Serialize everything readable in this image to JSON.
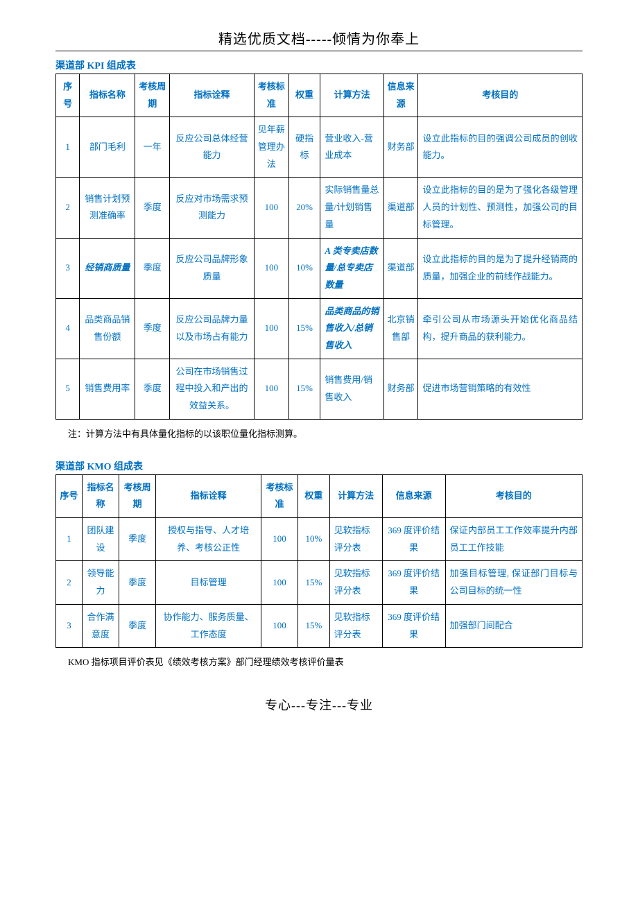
{
  "header": "精选优质文档-----倾情为你奉上",
  "footer": "专心---专注---专业",
  "kpi": {
    "title": "渠道部 KPI 组成表",
    "columns": [
      "序号",
      "指标名称",
      "考核周期",
      "指标诠释",
      "考核标准",
      "权重",
      "计算方法",
      "信息来源",
      "考核目的"
    ],
    "rows": [
      {
        "seq": "1",
        "name": "部门毛利",
        "period": "一年",
        "interp": "反应公司总体经营能力",
        "std": "见年薪管理办法",
        "weight": "硬指标",
        "method": "营业收入-营业成本",
        "source": "财务部",
        "purpose": "设立此指标的目的强调公司成员的创收能力。"
      },
      {
        "seq": "2",
        "name": "销售计划预测准确率",
        "period": "季度",
        "interp": "反应对市场需求预测能力",
        "std": "100",
        "weight": "20%",
        "method": "实际销售量总量/计划销售量",
        "source": "渠道部",
        "purpose": "设立此指标的目的是为了强化各级管理人员的计划性、预测性，加强公司的目标管理。"
      },
      {
        "seq": "3",
        "name": "经销商质量",
        "nameItalic": true,
        "period": "季度",
        "interp": "反应公司品牌形象质量",
        "std": "100",
        "weight": "10%",
        "method": "A 类专卖店数量/总专卖店数量",
        "methodItalic": true,
        "source": "渠道部",
        "purpose": "设立此指标的目的是为了提升经销商的质量，加强企业的前线作战能力。"
      },
      {
        "seq": "4",
        "name": "品类商品销售份额",
        "period": "季度",
        "interp": "反应公司品牌力量以及市场占有能力",
        "std": "100",
        "weight": "15%",
        "method": "品类商品的销售收入/总销售收入",
        "methodItalic": true,
        "source": "北京销售部",
        "purpose": "牵引公司从市场源头开始优化商品结构，提升商品的获利能力。"
      },
      {
        "seq": "5",
        "name": "销售费用率",
        "period": "季度",
        "interp": "公司在市场销售过程中投入和产出的效益关系。",
        "std": "100",
        "weight": "15%",
        "method": "销售费用/销售收入",
        "source": "财务部",
        "purpose": "促进市场营销策略的有效性"
      }
    ],
    "note": "注：计算方法中有具体量化指标的以该职位量化指标测算。"
  },
  "kmo": {
    "title": "渠道部 KMO 组成表",
    "columns": [
      "序号",
      "指标名称",
      "考核周期",
      "指标诠释",
      "考核标准",
      "权重",
      "计算方法",
      "信息来源",
      "考核目的"
    ],
    "rows": [
      {
        "seq": "1",
        "name": "团队建设",
        "period": "季度",
        "interp": "授权与指导、人才培养、考核公正性",
        "std": "100",
        "weight": "10%",
        "method": "见软指标评分表",
        "source": "369 度评价结果",
        "purpose": "保证内部员工工作效率提升内部员工工作技能"
      },
      {
        "seq": "2",
        "name": "领导能力",
        "period": "季度",
        "interp": "目标管理",
        "std": "100",
        "weight": "15%",
        "method": "见软指标评分表",
        "source": "369 度评价结果",
        "purpose": "加强目标管理, 保证部门目标与公司目标的统一性"
      },
      {
        "seq": "3",
        "name": "合作满意度",
        "period": "季度",
        "interp": "协作能力、服务质量、工作态度",
        "std": "100",
        "weight": "15%",
        "method": "见软指标评分表",
        "source": "369 度评价结果",
        "purpose": "加强部门间配合"
      }
    ],
    "note": "KMO 指标项目评价表见《绩效考核方案》部门经理绩效考核评价量表"
  }
}
